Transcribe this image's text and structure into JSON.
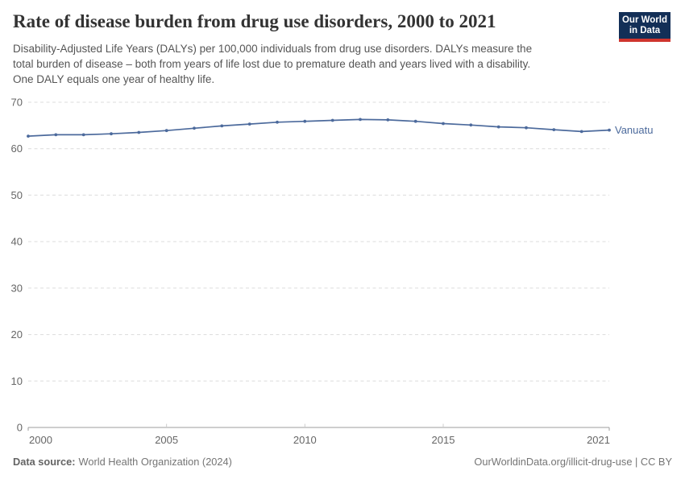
{
  "header": {
    "title": "Rate of disease burden from drug use disorders, 2000 to 2021",
    "logo": {
      "line1": "Our World",
      "line2": "in Data",
      "background": "#132f57",
      "stripe": "#cf352e",
      "text_color": "#ffffff"
    }
  },
  "subtitle": {
    "color": "#555555",
    "lines": [
      "Disability-Adjusted Life Years (DALYs) per 100,000 individuals from drug use disorders. DALYs measure the",
      "total burden of disease – both from years of life lost due to premature death and years lived with a disability.",
      "One DALY equals one year of healthy life."
    ]
  },
  "chart_data": {
    "type": "line",
    "title": "Rate of disease burden from drug use disorders, 2000 to 2021",
    "xlabel": "",
    "ylabel": "DALYs per 100,000 individuals",
    "x": [
      2000,
      2001,
      2002,
      2003,
      2004,
      2005,
      2006,
      2007,
      2008,
      2009,
      2010,
      2011,
      2012,
      2013,
      2014,
      2015,
      2016,
      2017,
      2018,
      2019,
      2020,
      2021
    ],
    "series": [
      {
        "name": "Vanuatu",
        "color": "#4c6a9c",
        "values": [
          62.7,
          63.0,
          63.0,
          63.2,
          63.5,
          63.9,
          64.4,
          64.9,
          65.3,
          65.7,
          65.9,
          66.1,
          66.3,
          66.2,
          65.9,
          65.4,
          65.1,
          64.7,
          64.5,
          64.1,
          63.7,
          64.0
        ]
      }
    ],
    "xlim": [
      2000,
      2021
    ],
    "ylim": [
      0,
      70
    ],
    "yticks": [
      0,
      10,
      20,
      30,
      40,
      50,
      60,
      70
    ],
    "xticks": [
      2000,
      2005,
      2010,
      2015,
      2021
    ],
    "grid": "horizontal dashed",
    "legend": "end-of-line label"
  },
  "axis_style": {
    "tick_label_color": "#666666",
    "grid_color": "#dcdcdc",
    "axis_color": "#9e9e9e",
    "minor_tick_color": "#cccccc"
  },
  "footer": {
    "source_label": "Data source:",
    "source_text": "World Health Organization (2024)",
    "credit": "OurWorldinData.org/illicit-drug-use | CC BY",
    "color": "#757575"
  }
}
